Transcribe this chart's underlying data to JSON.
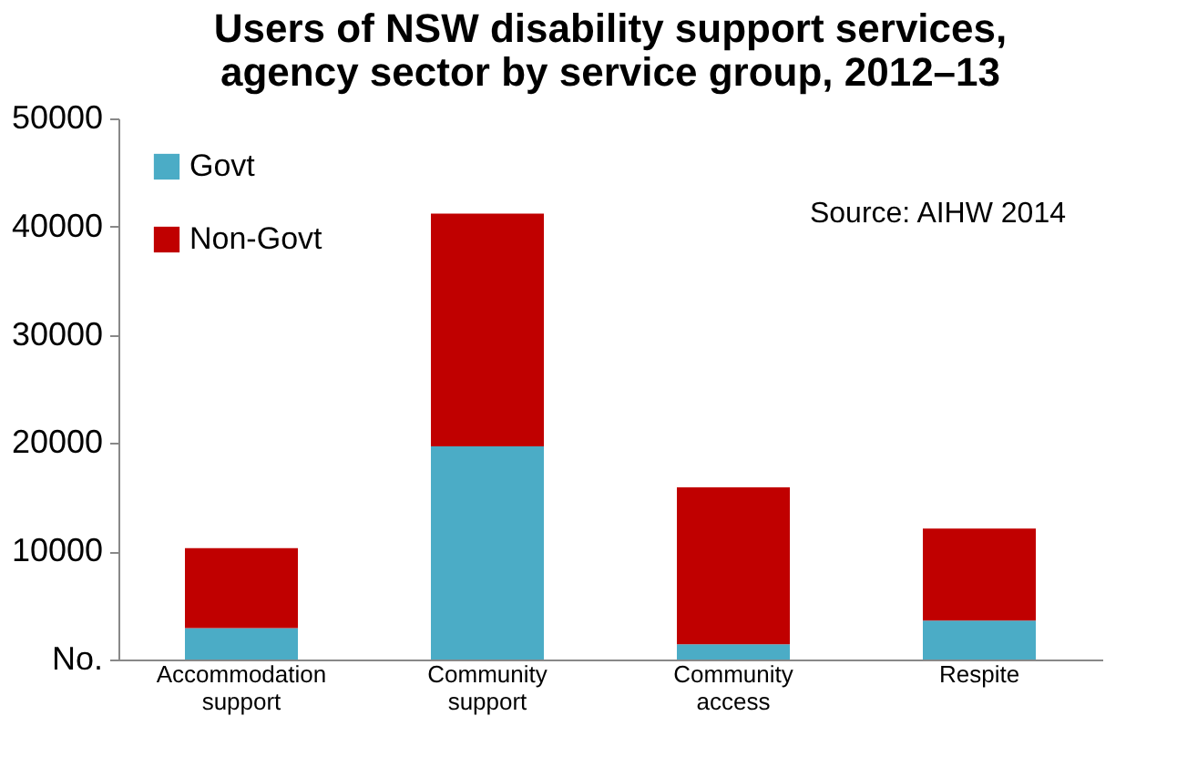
{
  "chart_data": {
    "type": "bar",
    "stacked": true,
    "title": [
      "Users of NSW disability support services,",
      "agency sector by service group, 2012–13"
    ],
    "categories": [
      "Accommodation support",
      "Community support",
      "Community access",
      "Respite"
    ],
    "series": [
      {
        "name": "Govt",
        "color": "#4bacc6",
        "values": [
          2900,
          19700,
          1400,
          3600
        ]
      },
      {
        "name": "Non-Govt",
        "color": "#c00000",
        "values": [
          7400,
          21500,
          14500,
          8500
        ]
      }
    ],
    "ylim": [
      0,
      50000
    ],
    "yticks": [
      {
        "value": 0,
        "label": "No."
      },
      10000,
      20000,
      30000,
      40000,
      50000
    ],
    "grid": false,
    "legend": "top left",
    "annotations": [
      "Source: AIHW 2014"
    ]
  }
}
